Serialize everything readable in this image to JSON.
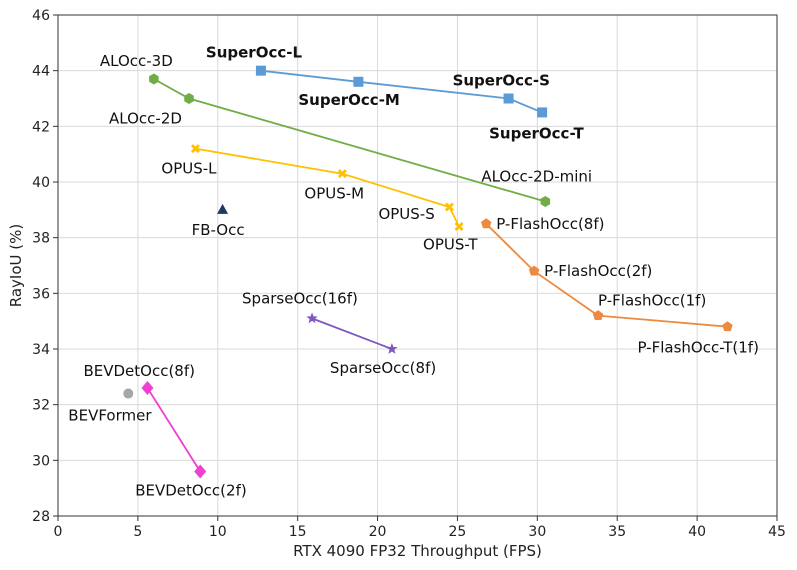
{
  "chart_data": {
    "type": "scatter",
    "xlabel": "RTX 4090 FP32 Throughput (FPS)",
    "ylabel": "RayIoU (%)",
    "xlim": [
      0,
      45
    ],
    "ylim": [
      28,
      46
    ],
    "xticks": [
      0,
      5,
      10,
      15,
      20,
      25,
      30,
      35,
      40,
      45
    ],
    "yticks": [
      28,
      30,
      32,
      34,
      36,
      38,
      40,
      42,
      44,
      46
    ],
    "grid": true,
    "series": [
      {
        "name": "SuperOcc",
        "color": "#5b9bd5",
        "marker": "square",
        "points": [
          {
            "label": "SuperOcc-L",
            "x": 12.7,
            "y": 44.0,
            "bold": true
          },
          {
            "label": "SuperOcc-M",
            "x": 18.8,
            "y": 43.6,
            "bold": true
          },
          {
            "label": "SuperOcc-S",
            "x": 28.2,
            "y": 43.0,
            "bold": true
          },
          {
            "label": "SuperOcc-T",
            "x": 30.3,
            "y": 42.5,
            "bold": true
          }
        ]
      },
      {
        "name": "ALOcc",
        "color": "#70ad47",
        "marker": "hexagon",
        "points": [
          {
            "label": "ALOcc-3D",
            "x": 6.0,
            "y": 43.7
          },
          {
            "label": "ALOcc-2D",
            "x": 8.2,
            "y": 43.0
          },
          {
            "label": "ALOcc-2D-mini",
            "x": 30.5,
            "y": 39.3
          }
        ]
      },
      {
        "name": "OPUS",
        "color": "#ffc000",
        "marker": "x",
        "points": [
          {
            "label": "OPUS-L",
            "x": 8.6,
            "y": 41.2
          },
          {
            "label": "OPUS-M",
            "x": 17.8,
            "y": 40.3
          },
          {
            "label": "OPUS-S",
            "x": 24.5,
            "y": 39.1
          },
          {
            "label": "OPUS-T",
            "x": 25.1,
            "y": 38.4
          }
        ]
      },
      {
        "name": "P-FlashOcc",
        "color": "#ed8a3f",
        "marker": "pentagon",
        "points": [
          {
            "label": "P-FlashOcc(8f)",
            "x": 26.8,
            "y": 38.5
          },
          {
            "label": "P-FlashOcc(2f)",
            "x": 29.8,
            "y": 36.8
          },
          {
            "label": "P-FlashOcc(1f)",
            "x": 33.8,
            "y": 35.2
          },
          {
            "label": "P-FlashOcc-T(1f)",
            "x": 41.9,
            "y": 34.8
          }
        ]
      },
      {
        "name": "SparseOcc",
        "color": "#7e57c2",
        "marker": "star",
        "points": [
          {
            "label": "SparseOcc(16f)",
            "x": 15.9,
            "y": 35.1
          },
          {
            "label": "SparseOcc(8f)",
            "x": 20.9,
            "y": 34.0
          }
        ]
      },
      {
        "name": "BEVDetOcc",
        "color": "#f03fd2",
        "marker": "diamond",
        "points": [
          {
            "label": "BEVDetOcc(8f)",
            "x": 5.6,
            "y": 32.6
          },
          {
            "label": "BEVDetOcc(2f)",
            "x": 8.9,
            "y": 29.6
          }
        ]
      },
      {
        "name": "FB-Occ",
        "color": "#203864",
        "marker": "triangle",
        "points": [
          {
            "label": "FB-Occ",
            "x": 10.3,
            "y": 39.0
          }
        ]
      },
      {
        "name": "BEVFormer",
        "color": "#a6a6a6",
        "marker": "circle",
        "points": [
          {
            "label": "BEVFormer",
            "x": 4.4,
            "y": 32.4
          }
        ]
      }
    ]
  }
}
